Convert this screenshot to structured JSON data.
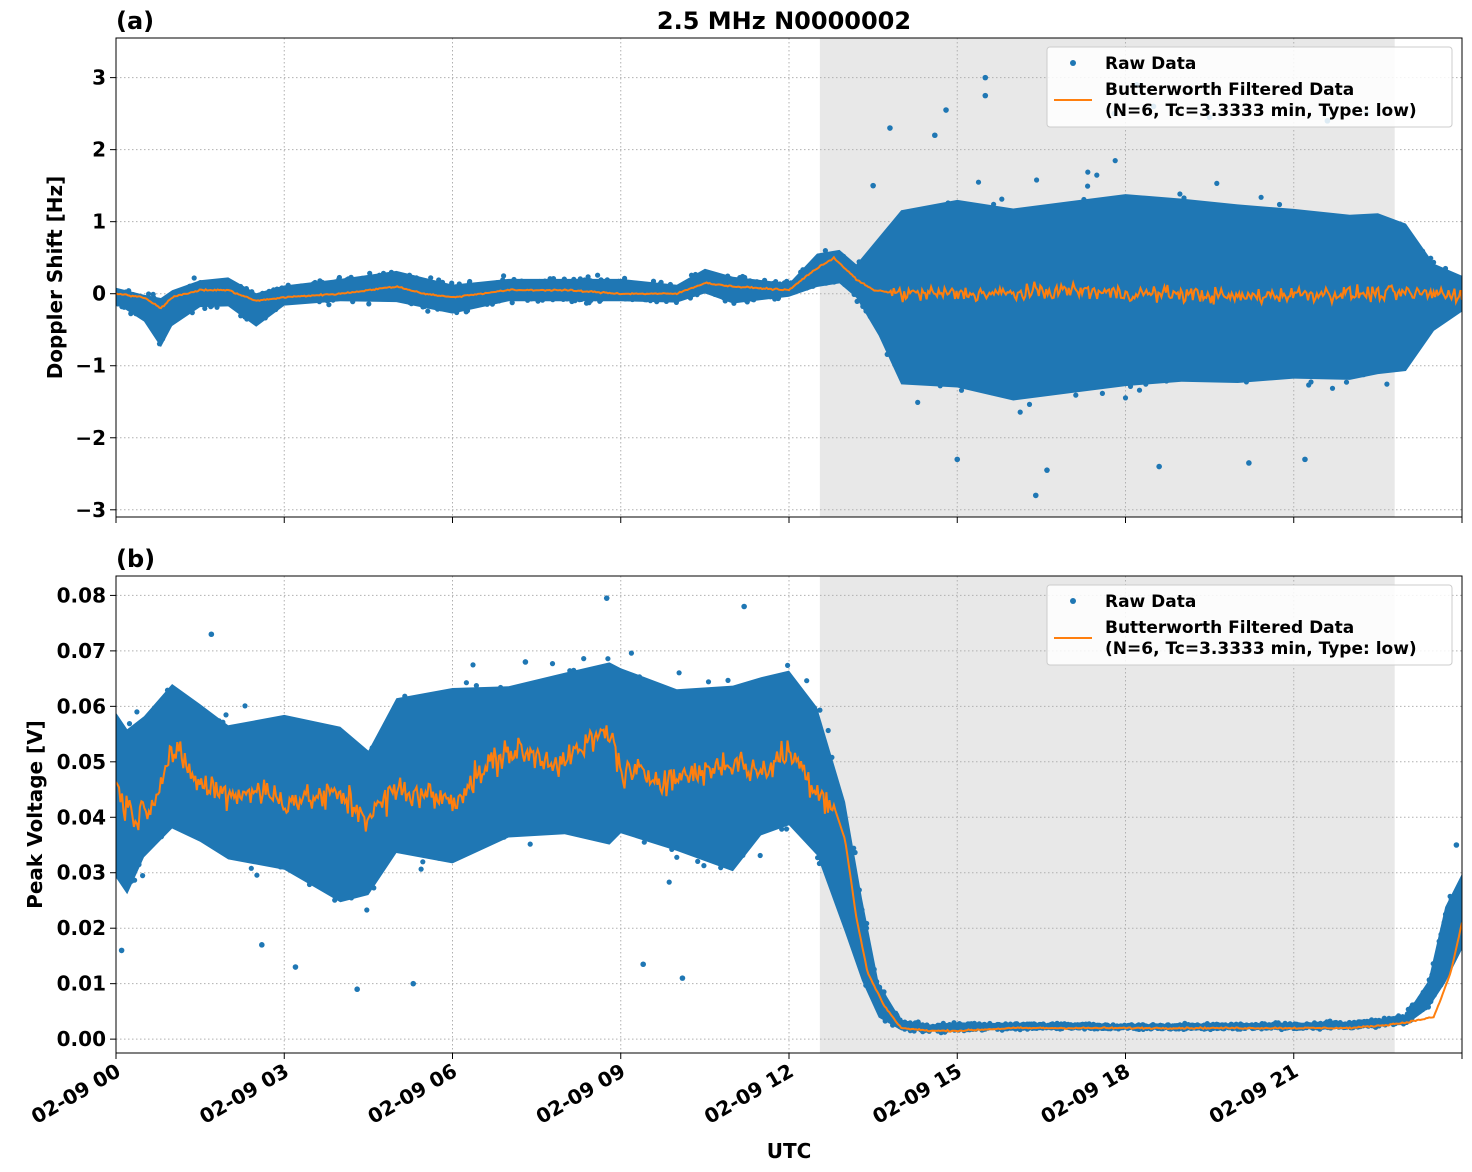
{
  "figure": {
    "title": "2.5 MHz N0000002",
    "xlabel": "UTC"
  },
  "colors": {
    "raw": "#1f77b4",
    "filtered": "#ff7f0e",
    "shade": "#e8e8e8",
    "grid": "#b0b0b0"
  },
  "chart_data": [
    {
      "panel": "(a)",
      "type": "scatter",
      "title": "2.5 MHz N0000002",
      "xlabel": "",
      "ylabel": "Doppler Shift [Hz]",
      "xlim": [
        0,
        24
      ],
      "ylim": [
        -3.1,
        3.55
      ],
      "yticks": [
        {
          "v": 3,
          "label": "3"
        },
        {
          "v": 2,
          "label": "2"
        },
        {
          "v": 1,
          "label": "1"
        },
        {
          "v": 0,
          "label": "0"
        },
        {
          "v": -1,
          "label": "−1"
        },
        {
          "v": -2,
          "label": "−2"
        },
        {
          "v": -3,
          "label": "−3"
        }
      ],
      "xticks": [
        {
          "v": 0,
          "label": "02-09 00"
        },
        {
          "v": 3,
          "label": "02-09 03"
        },
        {
          "v": 6,
          "label": "02-09 06"
        },
        {
          "v": 9,
          "label": "02-09 09"
        },
        {
          "v": 12,
          "label": "02-09 12"
        },
        {
          "v": 15,
          "label": "02-09 15"
        },
        {
          "v": 18,
          "label": "02-09 18"
        },
        {
          "v": 21,
          "label": "02-09 21"
        }
      ],
      "show_xtick_labels": false,
      "shaded_region": [
        12.55,
        22.8
      ],
      "grid": true,
      "legend": {
        "placement": "top-right",
        "entries": [
          "Raw Data",
          "Butterworth Filtered Data",
          "(N=6, Tc=3.3333 min, Type: low)"
        ]
      },
      "series": [
        {
          "name": "Raw Data",
          "kind": "scatter-band",
          "x": [
            0,
            0.5,
            0.8,
            1.0,
            1.5,
            2.0,
            2.5,
            3.0,
            4.0,
            5.0,
            6.0,
            7.0,
            8.0,
            9.0,
            10.0,
            10.5,
            11.0,
            12.0,
            12.5,
            12.9,
            13.2,
            13.6,
            14.0,
            15.0,
            16.0,
            17.0,
            18.0,
            19.0,
            20.0,
            21.0,
            22.0,
            22.5,
            23.0,
            23.5,
            24.0
          ],
          "y_min": [
            -0.2,
            -0.5,
            -0.95,
            -0.6,
            -0.3,
            -0.3,
            -0.6,
            -0.25,
            -0.2,
            -0.25,
            -0.4,
            -0.2,
            -0.2,
            -0.2,
            -0.2,
            -0.1,
            -0.25,
            -0.1,
            -0.05,
            0.0,
            -0.2,
            -1.0,
            -2.0,
            -2.1,
            -2.3,
            -2.2,
            -2.1,
            -2.0,
            -2.0,
            -1.9,
            -1.9,
            -1.8,
            -1.7,
            -0.8,
            -0.4
          ],
          "y_max": [
            0.15,
            0.1,
            0.15,
            0.2,
            0.3,
            0.35,
            0.15,
            0.2,
            0.3,
            0.45,
            0.25,
            0.3,
            0.3,
            0.3,
            0.2,
            0.45,
            0.35,
            0.2,
            0.7,
            0.75,
            0.55,
            1.2,
            1.9,
            2.1,
            2.0,
            2.1,
            2.2,
            2.1,
            2.0,
            1.9,
            1.8,
            1.8,
            1.6,
            0.7,
            0.4
          ],
          "outliers": [
            [
              15.5,
              3.0
            ],
            [
              15.5,
              2.75
            ],
            [
              18.2,
              2.9
            ],
            [
              18.5,
              2.6
            ],
            [
              19.5,
              2.45
            ],
            [
              13.8,
              2.3
            ],
            [
              16.4,
              -2.8
            ],
            [
              14.8,
              2.55
            ],
            [
              16.6,
              -2.45
            ],
            [
              18.6,
              -2.4
            ],
            [
              20.2,
              -2.35
            ],
            [
              21.2,
              -2.3
            ],
            [
              17.8,
              2.5
            ],
            [
              15.0,
              -2.3
            ],
            [
              22.3,
              2.5
            ],
            [
              13.5,
              1.5
            ],
            [
              21.6,
              2.4
            ],
            [
              14.6,
              2.2
            ]
          ]
        },
        {
          "name": "Butterworth Filtered Data",
          "kind": "line",
          "x": [
            0,
            0.5,
            0.8,
            1.0,
            1.5,
            2.0,
            2.5,
            3.0,
            4.0,
            5.0,
            5.5,
            6.0,
            7.0,
            8.0,
            9.0,
            10.0,
            10.5,
            11.0,
            12.0,
            12.4,
            12.8,
            13.2,
            13.5,
            14.0,
            15.0,
            16.0,
            17.0,
            18.0,
            19.0,
            20.0,
            21.0,
            22.0,
            23.0,
            24.0
          ],
          "y": [
            0.0,
            -0.05,
            -0.2,
            -0.05,
            0.05,
            0.05,
            -0.1,
            -0.05,
            0.0,
            0.1,
            0.0,
            -0.05,
            0.05,
            0.05,
            0.0,
            0.0,
            0.15,
            0.1,
            0.05,
            0.3,
            0.5,
            0.2,
            0.05,
            0.0,
            0.0,
            0.0,
            0.05,
            0.0,
            0.0,
            -0.05,
            0.0,
            0.0,
            0.0,
            0.0
          ],
          "jitter_start": 13.8,
          "jitter_amp": 0.18
        }
      ]
    },
    {
      "panel": "(b)",
      "type": "scatter",
      "title": "",
      "xlabel": "UTC",
      "ylabel": "Peak Voltage [V]",
      "xlim": [
        0,
        24
      ],
      "ylim": [
        -0.0025,
        0.0835
      ],
      "yticks": [
        {
          "v": 0.08,
          "label": "0.08"
        },
        {
          "v": 0.07,
          "label": "0.07"
        },
        {
          "v": 0.06,
          "label": "0.06"
        },
        {
          "v": 0.05,
          "label": "0.05"
        },
        {
          "v": 0.04,
          "label": "0.04"
        },
        {
          "v": 0.03,
          "label": "0.03"
        },
        {
          "v": 0.02,
          "label": "0.02"
        },
        {
          "v": 0.01,
          "label": "0.01"
        },
        {
          "v": 0.0,
          "label": "0.00"
        }
      ],
      "xticks": [
        {
          "v": 0,
          "label": "02-09 00"
        },
        {
          "v": 3,
          "label": "02-09 03"
        },
        {
          "v": 6,
          "label": "02-09 06"
        },
        {
          "v": 9,
          "label": "02-09 09"
        },
        {
          "v": 12,
          "label": "02-09 12"
        },
        {
          "v": 15,
          "label": "02-09 15"
        },
        {
          "v": 18,
          "label": "02-09 18"
        },
        {
          "v": 21,
          "label": "02-09 21"
        }
      ],
      "show_xtick_labels": true,
      "shaded_region": [
        12.55,
        22.8
      ],
      "grid": true,
      "legend": {
        "placement": "top-right",
        "entries": [
          "Raw Data",
          "Butterworth Filtered Data",
          "(N=6, Tc=3.3333 min, Type: low)"
        ]
      },
      "series": [
        {
          "name": "Raw Data",
          "kind": "scatter-band",
          "x": [
            0,
            0.2,
            0.5,
            1.0,
            1.5,
            2.0,
            3.0,
            4.0,
            4.5,
            5.0,
            6.0,
            7.0,
            8.0,
            8.8,
            9.0,
            10.0,
            11.0,
            11.5,
            12.0,
            12.5,
            13.0,
            13.3,
            13.6,
            14.0,
            14.5,
            15.0,
            16.0,
            18.0,
            20.0,
            22.0,
            22.5,
            23.0,
            23.4,
            23.7,
            24.0
          ],
          "y_min": [
            0.02,
            0.017,
            0.025,
            0.03,
            0.028,
            0.025,
            0.022,
            0.015,
            0.018,
            0.025,
            0.022,
            0.028,
            0.028,
            0.025,
            0.028,
            0.025,
            0.02,
            0.028,
            0.03,
            0.025,
            0.012,
            0.006,
            0.002,
            0.001,
            0.001,
            0.001,
            0.0015,
            0.0015,
            0.0015,
            0.0015,
            0.002,
            0.002,
            0.004,
            0.006,
            0.012
          ],
          "y_max": [
            0.068,
            0.065,
            0.066,
            0.072,
            0.068,
            0.064,
            0.067,
            0.066,
            0.06,
            0.07,
            0.073,
            0.072,
            0.075,
            0.078,
            0.076,
            0.072,
            0.074,
            0.074,
            0.075,
            0.068,
            0.05,
            0.03,
            0.012,
            0.004,
            0.003,
            0.0035,
            0.0032,
            0.003,
            0.003,
            0.0035,
            0.004,
            0.005,
            0.012,
            0.028,
            0.034
          ],
          "outliers": [
            [
              8.75,
              0.0795
            ],
            [
              11.2,
              0.078
            ],
            [
              4.3,
              0.009
            ],
            [
              5.3,
              0.01
            ],
            [
              0.1,
              0.016
            ],
            [
              9.4,
              0.0135
            ],
            [
              2.6,
              0.017
            ],
            [
              3.2,
              0.013
            ],
            [
              7.3,
              0.068
            ],
            [
              10.1,
              0.011
            ],
            [
              23.9,
              0.035
            ],
            [
              1.7,
              0.073
            ]
          ]
        },
        {
          "name": "Butterworth Filtered Data",
          "kind": "line",
          "x": [
            0,
            0.3,
            0.6,
            1.0,
            1.5,
            2.0,
            2.5,
            3.0,
            4.0,
            4.5,
            5.0,
            6.0,
            6.5,
            7.0,
            8.0,
            8.8,
            9.0,
            10.0,
            11.0,
            11.5,
            12.0,
            12.5,
            12.8,
            13.0,
            13.2,
            13.4,
            13.7,
            14.0,
            14.5,
            15.0,
            16.0,
            18.0,
            20.0,
            22.0,
            22.6,
            23.0,
            23.5,
            23.8,
            24.0
          ],
          "y": [
            0.046,
            0.04,
            0.042,
            0.052,
            0.046,
            0.044,
            0.045,
            0.043,
            0.044,
            0.04,
            0.045,
            0.043,
            0.048,
            0.052,
            0.05,
            0.056,
            0.048,
            0.047,
            0.05,
            0.048,
            0.052,
            0.045,
            0.042,
            0.036,
            0.022,
            0.012,
            0.006,
            0.002,
            0.0015,
            0.0015,
            0.002,
            0.002,
            0.002,
            0.002,
            0.0025,
            0.003,
            0.004,
            0.012,
            0.021
          ],
          "jitter_start": 0,
          "jitter_end": 12.8,
          "jitter_amp": 0.0045
        }
      ]
    }
  ]
}
